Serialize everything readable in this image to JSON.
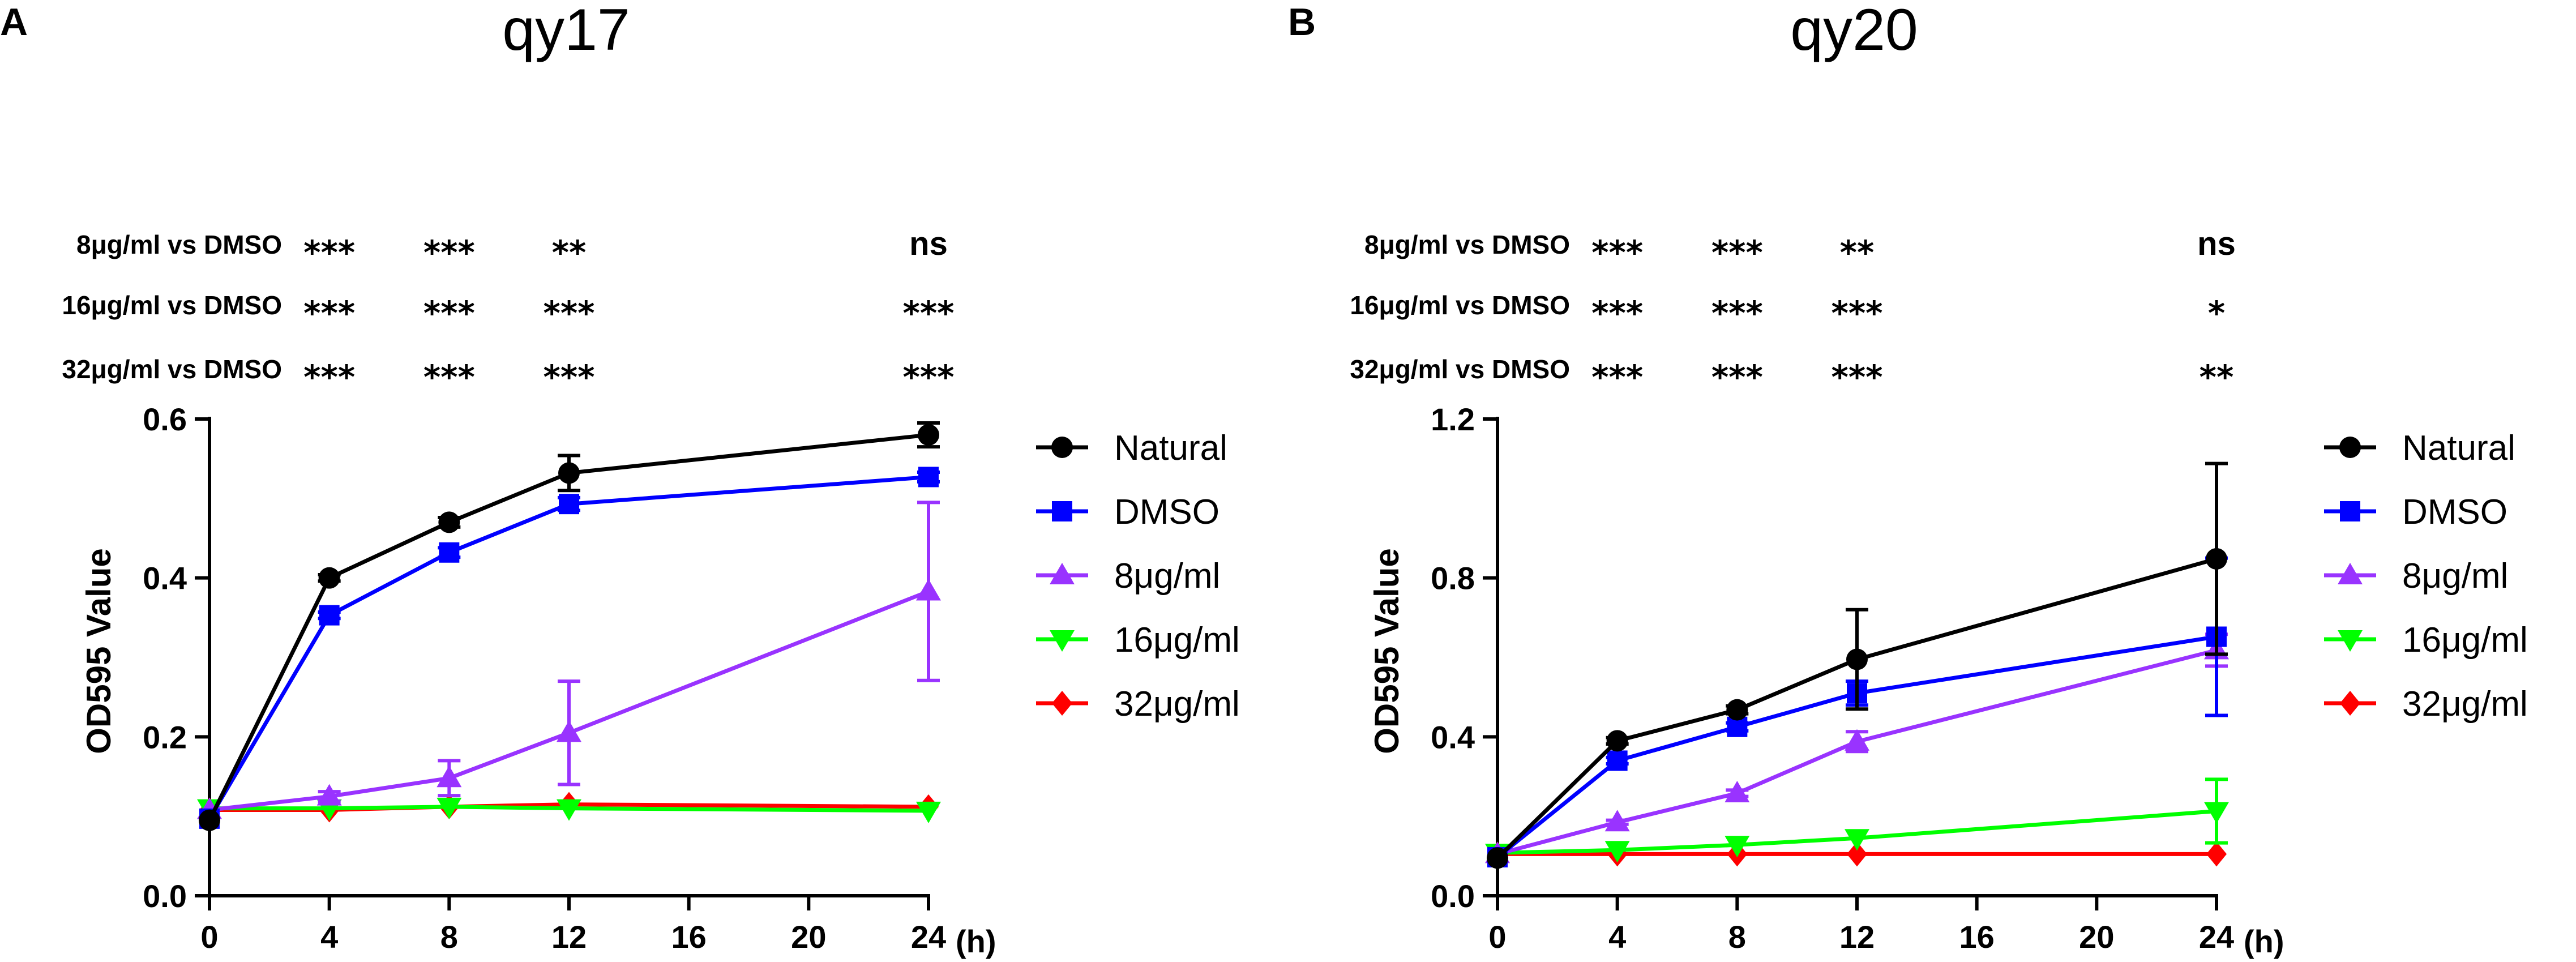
{
  "chart_data": [
    {
      "panel_label": "A",
      "type": "line",
      "title": "qy17",
      "xlabel": "(h)",
      "ylabel": "OD595 Value",
      "xlim": [
        0,
        24
      ],
      "ylim": [
        0,
        0.6
      ],
      "x_ticks": [
        0,
        4,
        8,
        12,
        16,
        20,
        24
      ],
      "x_tick_labels": [
        "0",
        "4",
        "8",
        "12",
        "16",
        "20",
        "24"
      ],
      "y_ticks": [
        0,
        0.2,
        0.4,
        0.6
      ],
      "y_tick_labels": [
        "0.0",
        "0.2",
        "0.4",
        "0.6"
      ],
      "x": [
        0,
        4,
        8,
        12,
        24
      ],
      "series": [
        {
          "name": "Natural",
          "color": "#000000",
          "marker": "circle",
          "values": [
            0.095,
            0.4,
            0.47,
            0.532,
            0.58
          ],
          "errors": [
            0,
            0.004,
            0.006,
            0.022,
            0.015
          ]
        },
        {
          "name": "DMSO",
          "color": "#0000ff",
          "marker": "square",
          "values": [
            0.097,
            0.353,
            0.432,
            0.493,
            0.527
          ],
          "errors": [
            0,
            0.004,
            0.006,
            0.008,
            0.006
          ]
        },
        {
          "name": "8μg/ml",
          "color": "#9933ff",
          "marker": "triangle-up",
          "values": [
            0.108,
            0.125,
            0.148,
            0.205,
            0.383
          ],
          "errors": [
            0,
            0.006,
            0.022,
            0.065,
            0.112
          ]
        },
        {
          "name": "16μg/ml",
          "color": "#00ff00",
          "marker": "triangle-down",
          "values": [
            0.11,
            0.11,
            0.112,
            0.11,
            0.107
          ],
          "errors": [
            0,
            0,
            0,
            0,
            0
          ]
        },
        {
          "name": "32μg/ml",
          "color": "#ff0000",
          "marker": "diamond",
          "values": [
            0.108,
            0.108,
            0.112,
            0.115,
            0.112
          ],
          "errors": [
            0,
            0,
            0,
            0,
            0
          ]
        }
      ],
      "significance": [
        {
          "label": "8μg/ml vs DMSO",
          "marks": [
            "***",
            "***",
            "**",
            "ns"
          ]
        },
        {
          "label": "16μg/ml vs DMSO",
          "marks": [
            "***",
            "***",
            "***",
            "***"
          ]
        },
        {
          "label": "32μg/ml vs DMSO",
          "marks": [
            "***",
            "***",
            "***",
            "***"
          ]
        }
      ],
      "significance_x": [
        4,
        8,
        12,
        24
      ],
      "legend_position": "right"
    },
    {
      "panel_label": "B",
      "type": "line",
      "title": "qy20",
      "xlabel": "(h)",
      "ylabel": "OD595 Value",
      "xlim": [
        0,
        24
      ],
      "ylim": [
        0,
        1.2
      ],
      "x_ticks": [
        0,
        4,
        8,
        12,
        16,
        20,
        24
      ],
      "x_tick_labels": [
        "0",
        "4",
        "8",
        "12",
        "16",
        "20",
        "24"
      ],
      "y_ticks": [
        0,
        0.4,
        0.8,
        1.2
      ],
      "y_tick_labels": [
        "0.0",
        "0.4",
        "0.8",
        "1.2"
      ],
      "x": [
        0,
        4,
        8,
        12,
        24
      ],
      "series": [
        {
          "name": "Natural",
          "color": "#000000",
          "marker": "circle",
          "values": [
            0.095,
            0.39,
            0.468,
            0.595,
            0.848
          ],
          "errors": [
            0,
            0.008,
            0.01,
            0.125,
            0.24
          ]
        },
        {
          "name": "DMSO",
          "color": "#0000ff",
          "marker": "square",
          "values": [
            0.097,
            0.34,
            0.425,
            0.51,
            0.652
          ],
          "errors": [
            0,
            0.008,
            0.01,
            0.03,
            0.198
          ]
        },
        {
          "name": "8μg/ml",
          "color": "#9933ff",
          "marker": "triangle-up",
          "values": [
            0.105,
            0.185,
            0.258,
            0.388,
            0.618
          ],
          "errors": [
            0,
            0.005,
            0.008,
            0.025,
            0.04
          ]
        },
        {
          "name": "16μg/ml",
          "color": "#00ff00",
          "marker": "triangle-down",
          "values": [
            0.108,
            0.115,
            0.128,
            0.145,
            0.213
          ],
          "errors": [
            0,
            0,
            0,
            0,
            0.08
          ]
        },
        {
          "name": "32μg/ml",
          "color": "#ff0000",
          "marker": "diamond",
          "values": [
            0.105,
            0.105,
            0.105,
            0.105,
            0.105
          ],
          "errors": [
            0,
            0,
            0,
            0,
            0
          ]
        }
      ],
      "significance": [
        {
          "label": "8μg/ml vs DMSO",
          "marks": [
            "***",
            "***",
            "**",
            "ns"
          ]
        },
        {
          "label": "16μg/ml vs DMSO",
          "marks": [
            "***",
            "***",
            "***",
            "*"
          ]
        },
        {
          "label": "32μg/ml vs DMSO",
          "marks": [
            "***",
            "***",
            "***",
            "**"
          ]
        }
      ],
      "significance_x": [
        4,
        8,
        12,
        24
      ],
      "legend_position": "right"
    }
  ]
}
